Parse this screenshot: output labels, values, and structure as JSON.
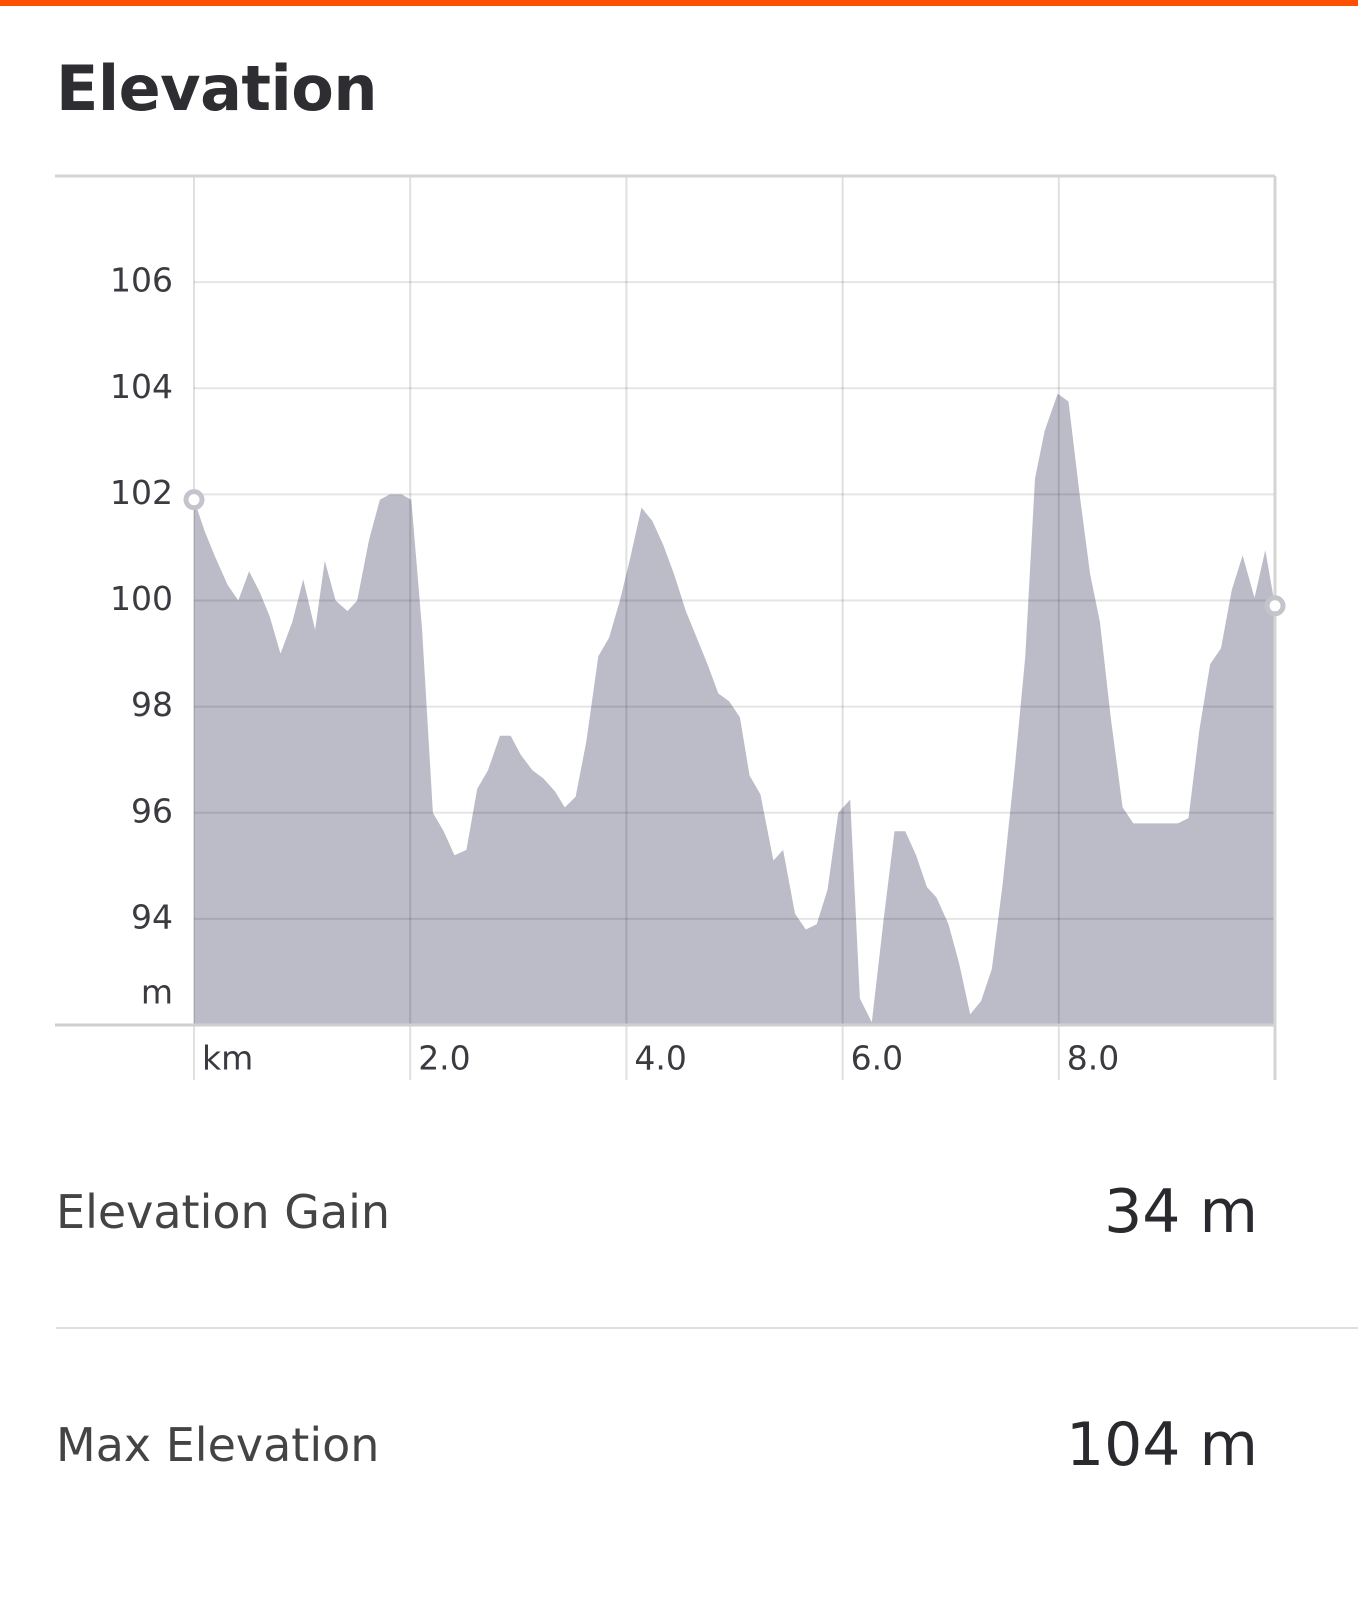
{
  "title": "Elevation",
  "chart_data": {
    "type": "area",
    "ylabel": "m",
    "x": [
      0,
      0.1,
      0.19,
      0.31,
      0.41,
      0.51,
      0.61,
      0.7,
      0.8,
      0.91,
      1.01,
      1.12,
      1.21,
      1.31,
      1.42,
      1.51,
      1.62,
      1.72,
      1.81,
      1.92,
      2.01,
      2.11,
      2.21,
      2.31,
      2.41,
      2.52,
      2.62,
      2.72,
      2.83,
      2.93,
      3.02,
      3.13,
      3.23,
      3.34,
      3.43,
      3.53,
      3.63,
      3.74,
      3.84,
      3.94,
      4.03,
      4.14,
      4.24,
      4.34,
      4.44,
      4.55,
      4.65,
      4.75,
      4.85,
      4.95,
      5.05,
      5.14,
      5.24,
      5.36,
      5.45,
      5.56,
      5.66,
      5.76,
      5.86,
      5.96,
      6.07,
      6.16,
      6.27,
      6.38,
      6.48,
      6.58,
      6.68,
      6.78,
      6.87,
      6.98,
      7.08,
      7.18,
      7.28,
      7.38,
      7.48,
      7.59,
      7.69,
      7.78,
      7.87,
      7.99,
      8.09,
      8.19,
      8.29,
      8.38,
      8.48,
      8.59,
      8.69,
      8.8,
      8.9,
      9.0,
      9.1,
      9.2,
      9.3,
      9.4,
      9.5,
      9.6,
      9.7,
      9.81,
      9.91,
      10.0
    ],
    "values": [
      101.9,
      101.3,
      100.85,
      100.3,
      100.0,
      100.55,
      100.15,
      99.7,
      99.0,
      99.6,
      100.4,
      99.45,
      100.75,
      100.0,
      99.8,
      100.0,
      101.15,
      101.9,
      102.0,
      102.0,
      101.9,
      99.45,
      96.0,
      95.65,
      95.2,
      95.3,
      96.45,
      96.8,
      97.45,
      97.45,
      97.1,
      96.8,
      96.65,
      96.4,
      96.1,
      96.3,
      97.35,
      98.95,
      99.3,
      100.0,
      100.75,
      101.75,
      101.5,
      101.05,
      100.5,
      99.8,
      99.3,
      98.8,
      98.25,
      98.1,
      97.8,
      96.7,
      96.35,
      95.1,
      95.3,
      94.1,
      93.8,
      93.9,
      94.55,
      96.0,
      96.25,
      92.5,
      92.05,
      94.0,
      95.65,
      95.65,
      95.2,
      94.6,
      94.4,
      93.9,
      93.15,
      92.2,
      92.45,
      93.05,
      94.65,
      96.8,
      98.95,
      102.3,
      103.2,
      103.9,
      103.75,
      102.05,
      100.5,
      99.6,
      97.8,
      96.1,
      95.8,
      95.8,
      95.8,
      95.8,
      95.8,
      95.9,
      97.55,
      98.8,
      99.1,
      100.2,
      100.85,
      100.05,
      100.95,
      99.9
    ],
    "color": "#bcbcc9",
    "xlim": [
      0,
      10
    ],
    "xticks": [
      {
        "value": 0,
        "label": "km"
      },
      {
        "value": 2,
        "label": "2.0"
      },
      {
        "value": 4,
        "label": "4.0"
      },
      {
        "value": 6,
        "label": "6.0"
      },
      {
        "value": 8,
        "label": "8.0"
      }
    ],
    "ylim": [
      92,
      108
    ],
    "yticks": [
      94,
      96,
      98,
      100,
      102,
      104,
      106
    ],
    "grid": true
  },
  "stats": [
    {
      "label": "Elevation Gain",
      "value": "34 m"
    },
    {
      "label": "Max Elevation",
      "value": "104 m"
    }
  ]
}
